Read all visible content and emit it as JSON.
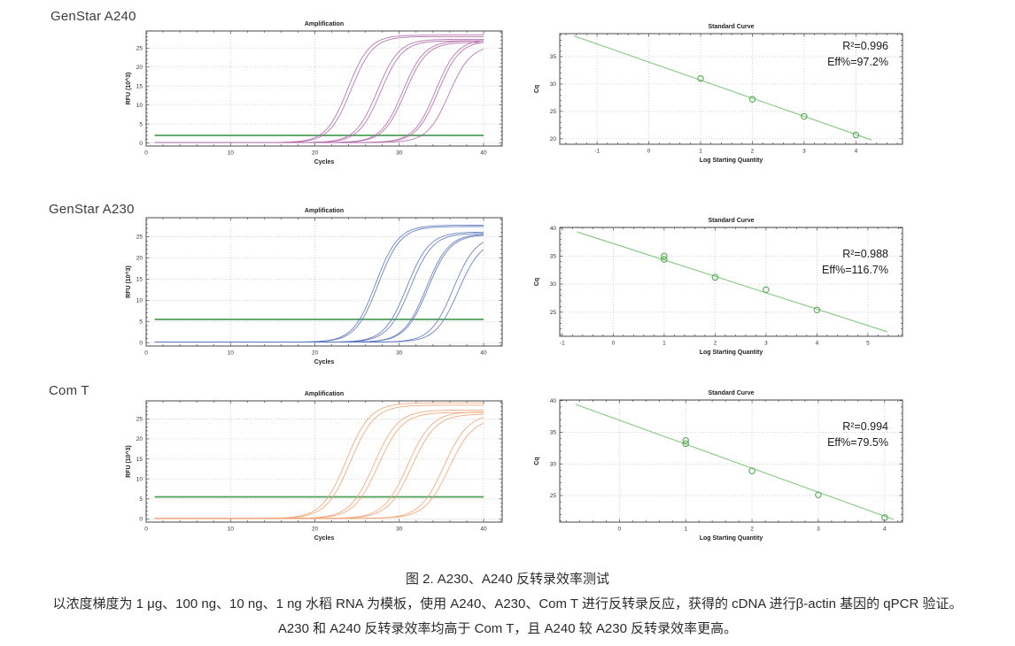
{
  "rows": [
    {
      "label": "GenStar A240",
      "amp_chart": 0,
      "std_chart": 1
    },
    {
      "label": "GenStar A230",
      "amp_chart": 2,
      "std_chart": 3
    },
    {
      "label": "Com T",
      "amp_chart": 4,
      "std_chart": 5
    }
  ],
  "caption": {
    "title": "图 2. A230、A240 反转录效率测试",
    "line2": "以浓度梯度为 1 μg、100 ng、10 ng、1 ng 水稻 RNA 为模板，使用 A240、A230、Com T 进行反转录反应，获得的 cDNA 进行β-actin 基因的 qPCR 验证。",
    "line3": "A230 和 A240 反转录效率均高于 Com T，且 A240 较 A230 反转录效率更高。"
  },
  "colors": {
    "a240_curves": "#b168ac",
    "a230_curves": "#5c77be",
    "comt_curves": "#f2a374",
    "threshold_green": "#4d9e58",
    "std_line_green": "#82c882",
    "std_point_green": "#55aa55",
    "frame": "#4a4a4a",
    "grid": "#c3c3c3",
    "tick_text": "#333333",
    "annotation_text": "#1a1a1a"
  },
  "chart_data": [
    {
      "type": "line",
      "subtype": "amplification",
      "title": "Amplification",
      "xlabel": "Cycles",
      "ylabel": "RFU (10^3)",
      "xlim": [
        0,
        42.2
      ],
      "ylim": [
        -0.8,
        29.5
      ],
      "xticks": [
        0,
        10,
        20,
        30,
        40
      ],
      "yticks": [
        0,
        5,
        10,
        15,
        20,
        25
      ],
      "grid": true,
      "threshold": 2,
      "k": 0.78,
      "color_key": "a240_curves",
      "curves": [
        {
          "m": 23.9,
          "p": 28.3
        },
        {
          "m": 24.3,
          "p": 27.9
        },
        {
          "m": 27.4,
          "p": 27.2
        },
        {
          "m": 27.8,
          "p": 26.8
        },
        {
          "m": 30.4,
          "p": 26.8
        },
        {
          "m": 30.7,
          "p": 26.4
        },
        {
          "m": 34.3,
          "p": 27.2
        },
        {
          "m": 34.6,
          "p": 26.8
        },
        {
          "m": 35.9,
          "p": 25.6
        }
      ]
    },
    {
      "type": "scatter",
      "subtype": "standard",
      "title": "Standard Curve",
      "xlabel": "Log Starting Quantity",
      "ylabel": "Cq",
      "xlim": [
        -1.72,
        4.9
      ],
      "ylim": [
        19.0,
        39.2
      ],
      "xticks": [
        -1,
        0,
        1,
        2,
        3,
        4
      ],
      "yticks": [
        20,
        25,
        30,
        35
      ],
      "grid": true,
      "fit_line": [
        [
          -1.45,
          38.8
        ],
        [
          4.3,
          19.8
        ]
      ],
      "points": [
        [
          1,
          31.0
        ],
        [
          2,
          27.2
        ],
        [
          3,
          24.1
        ],
        [
          4,
          20.7
        ]
      ],
      "r2": "R²=0.996",
      "eff": "Eff%=97.2%"
    },
    {
      "type": "line",
      "subtype": "amplification",
      "title": "Amplification",
      "xlabel": "Cycles",
      "ylabel": "RFU (10^3)",
      "xlim": [
        0,
        42.2
      ],
      "ylim": [
        -0.8,
        29.5
      ],
      "xticks": [
        0,
        10,
        20,
        30,
        40
      ],
      "yticks": [
        0,
        5,
        10,
        15,
        20,
        25
      ],
      "grid": true,
      "threshold": 5.5,
      "k": 0.75,
      "color_key": "a230_curves",
      "curves": [
        {
          "m": 27.2,
          "p": 27.6
        },
        {
          "m": 27.5,
          "p": 27.3
        },
        {
          "m": 30.9,
          "p": 26.0
        },
        {
          "m": 31.3,
          "p": 25.7
        },
        {
          "m": 33.2,
          "p": 25.6
        },
        {
          "m": 33.4,
          "p": 25.4
        },
        {
          "m": 36.4,
          "p": 25.2
        },
        {
          "m": 37.0,
          "p": 24.2
        }
      ]
    },
    {
      "type": "scatter",
      "subtype": "standard",
      "title": "Standard Curve",
      "xlabel": "Log Starting Quantity",
      "ylabel": "Cq",
      "xlim": [
        -1.05,
        5.68
      ],
      "ylim": [
        20.7,
        40.1
      ],
      "xticks": [
        -1,
        0,
        1,
        2,
        3,
        4,
        5
      ],
      "yticks": [
        25,
        30,
        35,
        40
      ],
      "grid": true,
      "fit_line": [
        [
          -0.71,
          39.3
        ],
        [
          5.38,
          21.5
        ]
      ],
      "points": [
        [
          1,
          35.0
        ],
        [
          1,
          34.4
        ],
        [
          2,
          31.2
        ],
        [
          3,
          29.0
        ],
        [
          4,
          25.4
        ]
      ],
      "r2": "R²=0.988",
      "eff": "Eff%=116.7%"
    },
    {
      "type": "line",
      "subtype": "amplification",
      "title": "Amplification",
      "xlabel": "Cycles",
      "ylabel": "RFU (10^3)",
      "xlim": [
        0,
        42.2
      ],
      "ylim": [
        -0.8,
        29.5
      ],
      "xticks": [
        0,
        10,
        20,
        30,
        40
      ],
      "yticks": [
        0,
        5,
        10,
        15,
        20,
        25
      ],
      "grid": true,
      "threshold": 5.5,
      "k": 0.7,
      "color_key": "comt_curves",
      "curves": [
        {
          "m": 23.7,
          "p": 28.9
        },
        {
          "m": 24.2,
          "p": 28.3
        },
        {
          "m": 27.0,
          "p": 27.1
        },
        {
          "m": 27.5,
          "p": 26.5
        },
        {
          "m": 31.0,
          "p": 26.7
        },
        {
          "m": 31.5,
          "p": 26.1
        },
        {
          "m": 35.3,
          "p": 26.2
        },
        {
          "m": 35.9,
          "p": 25.2
        }
      ]
    },
    {
      "type": "scatter",
      "subtype": "standard",
      "title": "Standard Curve",
      "xlabel": "Log Starting Quantity",
      "ylabel": "Cq",
      "xlim": [
        -0.9,
        4.27
      ],
      "ylim": [
        20.8,
        40.1
      ],
      "xticks": [
        0,
        1,
        2,
        3,
        4
      ],
      "yticks": [
        25,
        30,
        35,
        40
      ],
      "grid": true,
      "fit_line": [
        [
          -0.66,
          39.4
        ],
        [
          4.14,
          21.2
        ]
      ],
      "points": [
        [
          1,
          33.7
        ],
        [
          1,
          33.2
        ],
        [
          2,
          28.9
        ],
        [
          3,
          25.1
        ],
        [
          4,
          21.5
        ]
      ],
      "r2": "R²=0.994",
      "eff": "Eff%=79.5%"
    }
  ]
}
